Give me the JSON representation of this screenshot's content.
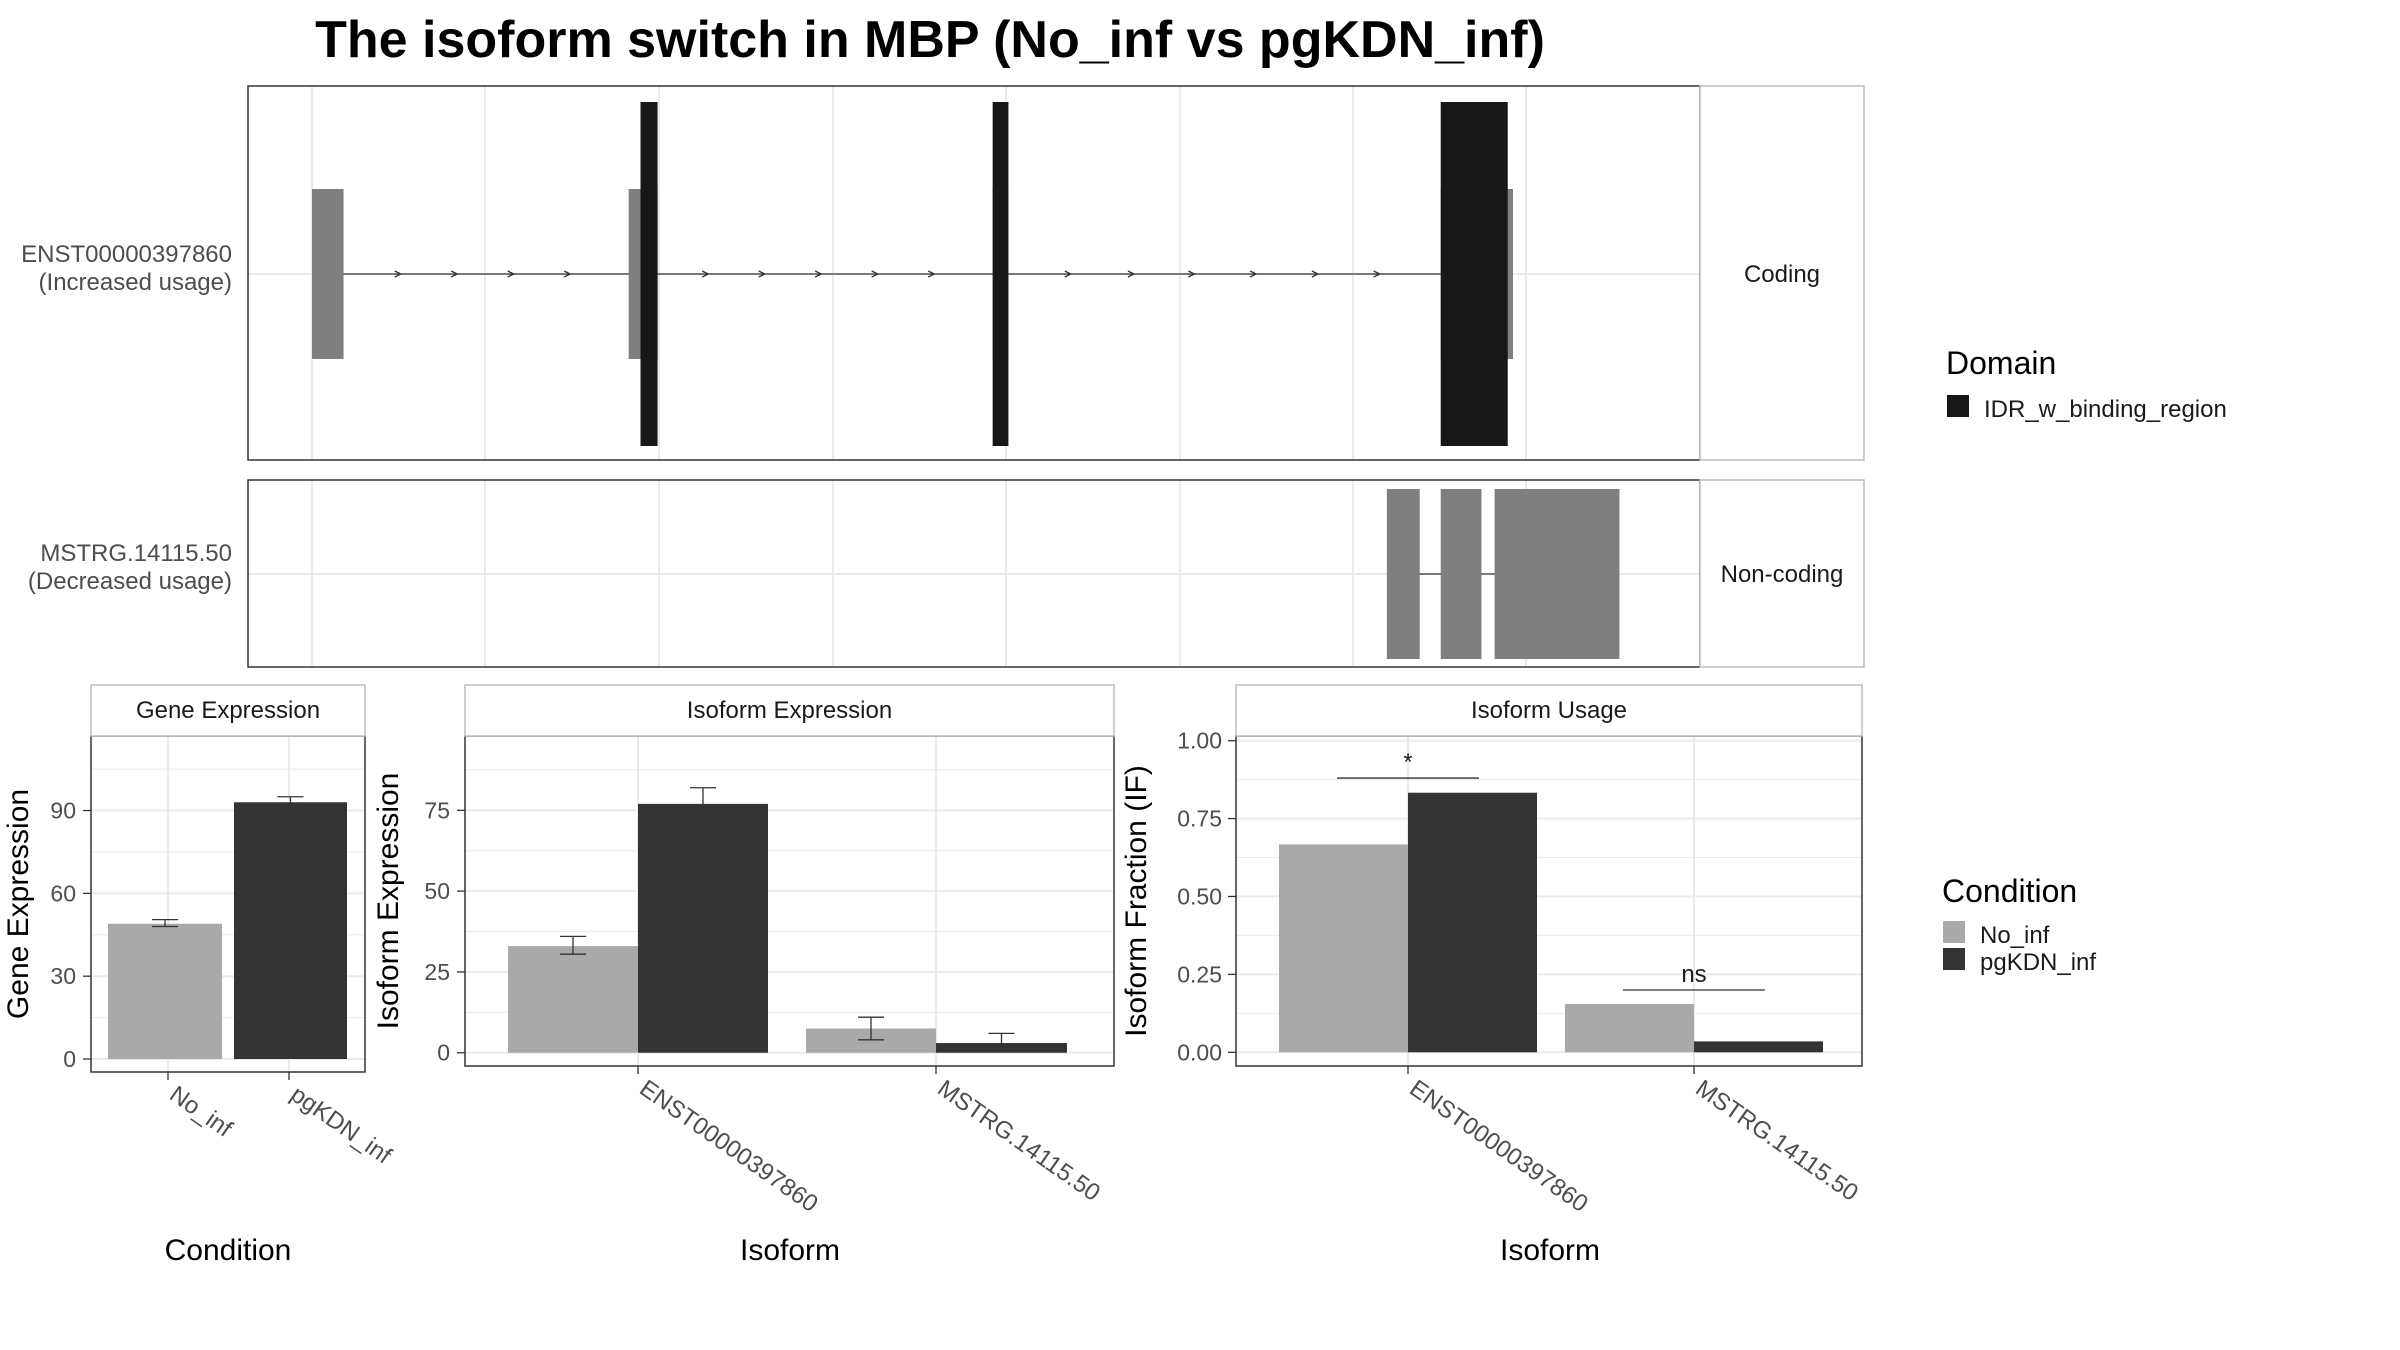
{
  "title": "The isoform switch in MBP (No_inf vs pgKDN_inf)",
  "colors": {
    "no_inf": "#a9a9a9",
    "pgkdn_inf": "#333333",
    "domain": "#171717",
    "utr": "#7f7f7f",
    "grid": "#ebebeb",
    "panel_border": "#333333",
    "strip_border": "#bdbdbd"
  },
  "transcripts": [
    {
      "id": "ENST00000397860",
      "usage_label": "(Increased usage)",
      "facet": "Coding",
      "exons": [
        [
          0.0,
          0.024
        ],
        [
          0.241,
          0.263
        ],
        [
          0.518,
          0.53
        ],
        [
          0.859,
          0.914
        ]
      ],
      "cds": [
        [
          0.25,
          0.263
        ],
        [
          0.518,
          0.53
        ],
        [
          0.859,
          0.91
        ]
      ],
      "domain_name": "IDR_w_binding_region",
      "intron_arrows": [
        0.066,
        0.109,
        0.152,
        0.195,
        0.3,
        0.343,
        0.386,
        0.429,
        0.472,
        0.576,
        0.624,
        0.67,
        0.717,
        0.764,
        0.811
      ]
    },
    {
      "id": "MSTRG.14115.50",
      "usage_label": "(Decreased usage)",
      "facet": "Non-coding",
      "exons": [
        [
          0.818,
          0.843
        ],
        [
          0.859,
          0.89
        ],
        [
          0.9,
          0.995
        ]
      ],
      "cds": [],
      "intron_arrows": []
    }
  ],
  "legends": {
    "domain": {
      "title": "Domain",
      "entries": [
        "IDR_w_binding_region"
      ]
    },
    "condition": {
      "title": "Condition",
      "entries": [
        "No_inf",
        "pgKDN_inf"
      ]
    }
  },
  "chart_data": [
    {
      "type": "bar",
      "strip": "Gene Expression",
      "categories": [
        "No_inf",
        "pgKDN_inf"
      ],
      "values": [
        49,
        93
      ],
      "errors": [
        [
          48,
          50.5
        ],
        [
          91,
          95
        ]
      ],
      "xlabel": "Condition",
      "ylabel": "Gene Expression",
      "yticks": [
        0,
        30,
        60,
        90
      ],
      "ylim": [
        -4.7,
        117
      ],
      "grid": true
    },
    {
      "type": "bar",
      "strip": "Isoform Expression",
      "categories": [
        "ENST00000397860",
        "MSTRG.14115.50"
      ],
      "series": [
        {
          "name": "No_inf",
          "values": [
            33,
            7.5
          ],
          "errors": [
            [
              30.5,
              36
            ],
            [
              4,
              11
            ]
          ]
        },
        {
          "name": "pgKDN_inf",
          "values": [
            77,
            3
          ],
          "errors": [
            [
              72.5,
              82
            ],
            [
              0.5,
              6
            ]
          ]
        }
      ],
      "xlabel": "Isoform",
      "ylabel": "Isoform Expression",
      "yticks": [
        0,
        25,
        50,
        75
      ],
      "ylim": [
        -4.1,
        98
      ],
      "grid": true
    },
    {
      "type": "bar",
      "strip": "Isoform Usage",
      "categories": [
        "ENST00000397860",
        "MSTRG.14115.50"
      ],
      "series": [
        {
          "name": "No_inf",
          "values": [
            0.667,
            0.155
          ]
        },
        {
          "name": "pgKDN_inf",
          "values": [
            0.833,
            0.035
          ]
        }
      ],
      "annotations": [
        {
          "category": "ENST00000397860",
          "text": "*",
          "y": 0.88
        },
        {
          "category": "MSTRG.14115.50",
          "text": "ns",
          "y": 0.2
        }
      ],
      "xlabel": "Isoform",
      "ylabel": "Isoform Fraction (IF)",
      "yticks": [
        0.0,
        0.25,
        0.5,
        0.75,
        1.0
      ],
      "ytick_labels": [
        "0.00",
        "0.25",
        "0.50",
        "0.75",
        "1.00"
      ],
      "ylim": [
        -0.044,
        1.015
      ],
      "grid": true
    }
  ]
}
